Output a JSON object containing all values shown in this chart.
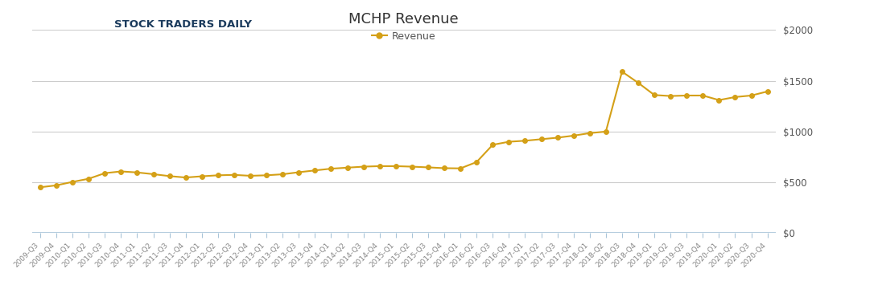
{
  "title": "MCHP Revenue",
  "legend_label": "Revenue",
  "line_color": "#D4A017",
  "marker_color": "#D4A017",
  "background_color": "#ffffff",
  "grid_color": "#cccccc",
  "ylabel_color": "#555555",
  "xlabel_color": "#888888",
  "ylim": [
    0,
    2000
  ],
  "yticks": [
    0,
    500,
    1000,
    1500,
    2000
  ],
  "ytick_labels": [
    "$0",
    "$500",
    "$1000",
    "$1500",
    "$2000"
  ],
  "categories": [
    "2009-Q3",
    "2009-Q4",
    "2010-Q1",
    "2010-Q2",
    "2010-Q3",
    "2010-Q4",
    "2011-Q1",
    "2011-Q2",
    "2011-Q3",
    "2011-Q4",
    "2012-Q1",
    "2012-Q2",
    "2012-Q3",
    "2012-Q4",
    "2013-Q1",
    "2013-Q2",
    "2013-Q3",
    "2013-Q4",
    "2014-Q1",
    "2014-Q2",
    "2014-Q3",
    "2014-Q4",
    "2015-Q1",
    "2015-Q2",
    "2015-Q3",
    "2015-Q4",
    "2016-Q1",
    "2016-Q2",
    "2016-Q3",
    "2016-Q4",
    "2017-Q1",
    "2017-Q2",
    "2017-Q3",
    "2017-Q4",
    "2018-Q1",
    "2018-Q2",
    "2018-Q3",
    "2018-Q4",
    "2019-Q1",
    "2019-Q2",
    "2019-Q3",
    "2019-Q4",
    "2020-Q1",
    "2020-Q2",
    "2020-Q3",
    "2020-Q4"
  ],
  "values": [
    452,
    471,
    505,
    536,
    591,
    608,
    598,
    581,
    562,
    548,
    560,
    570,
    574,
    565,
    570,
    580,
    600,
    618,
    635,
    645,
    655,
    660,
    660,
    655,
    648,
    640,
    638,
    700,
    870,
    900,
    910,
    925,
    940,
    960,
    985,
    1000,
    1590,
    1480,
    1360,
    1350,
    1355,
    1355,
    1310,
    1340,
    1355,
    1395
  ]
}
